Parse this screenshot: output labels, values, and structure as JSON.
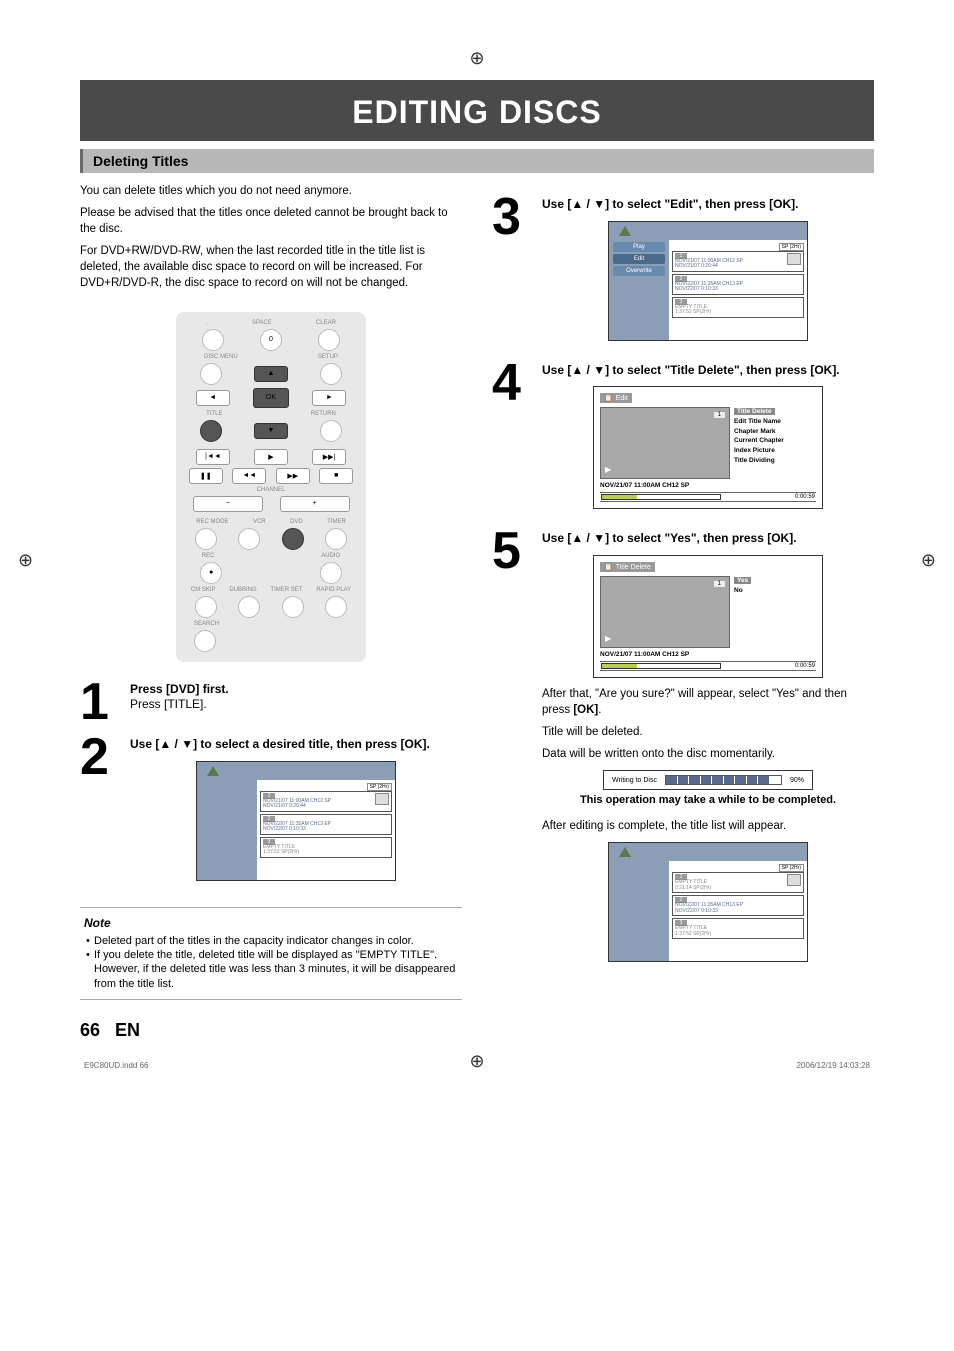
{
  "page_title": "EDITING DISCS",
  "section_header": "Deleting Titles",
  "intro1": "You can delete titles which you do not need anymore.",
  "intro2": "Please be advised that the titles once deleted cannot be brought back to the disc.",
  "intro3": "For DVD+RW/DVD-RW, when the last recorded title in the title list is deleted, the available disc space to record on will be increased. For DVD+R/DVD-R, the disc space to record on will not be changed.",
  "remote": {
    "labels": {
      "space": "SPACE",
      "clear": "CLEAR",
      "disc_menu": "DISC MENU",
      "setup": "SETUP",
      "ok": "OK",
      "title": "TITLE",
      "return": "RETURN",
      "channel": "CHANNEL",
      "rec_mode": "REC MODE",
      "vcr": "VCR",
      "dvd": "DVD",
      "timer": "TIMER",
      "rec": "REC",
      "audio": "AUDIO",
      "cm_skip": "CM SKIP",
      "dubbing": "DUBBING",
      "timer_set": "TIMER SET",
      "rapid": "RAPID PLAY",
      "search": "SEARCH"
    }
  },
  "step1": {
    "num": "1",
    "bold": "Press [DVD] first.",
    "rest": "Press [TITLE]."
  },
  "step2": {
    "num": "2",
    "text": "Use [▲ / ▼] to select a desired title, then press [OK]."
  },
  "step3": {
    "num": "3",
    "text": "Use [▲ / ▼] to select \"Edit\", then press [OK]."
  },
  "step4": {
    "num": "4",
    "text": "Use [▲ / ▼] to select \"Title Delete\", then press [OK]."
  },
  "step5": {
    "num": "5",
    "text": "Use [▲ / ▼] to select \"Yes\", then press [OK]."
  },
  "title_list": {
    "sp": "SP (2Hr)",
    "menu": {
      "play": "Play",
      "edit": "Edit",
      "overwrite": "Overwrite"
    },
    "items": [
      {
        "n": "1",
        "l1": "NOV/21/07 11:00AM CH12 SP",
        "l2": "NOV/21/07   0:20:44"
      },
      {
        "n": "2",
        "l1": "NOV/22/07 11:35AM CH13 EP",
        "l2": "NOV/22/07   0:10:33"
      },
      {
        "n": "3",
        "l1": "EMPTY TITLE",
        "l2": "1:37:52  SP(2Hr)",
        "empty": true
      }
    ]
  },
  "title_list_after": {
    "sp": "SP (2Hr)",
    "items": [
      {
        "n": "1",
        "l1": "EMPTY TITLE",
        "l2": "0:21:14  SP(2Hr)",
        "empty": true
      },
      {
        "n": "2",
        "l1": "NOV/22/07 11:35AM CH13 EP",
        "l2": "NOV/22/07   0:10:33"
      },
      {
        "n": "3",
        "l1": "EMPTY TITLE",
        "l2": "1:37:52  SP(2Hr)",
        "empty": true
      }
    ]
  },
  "edit_screen": {
    "title": "Edit",
    "preview_num": "1",
    "opts": [
      "Title Delete",
      "Edit Title Name",
      "Chapter Mark",
      "Current Chapter",
      "Index Picture",
      "Title Dividing"
    ],
    "footer": "NOV/21/07 11:00AM CH12 SP",
    "time": "0:00:59"
  },
  "delete_screen": {
    "title": "Title Delete",
    "preview_num": "1",
    "yes": "Yes",
    "no": "No",
    "footer": "NOV/21/07 11:00AM CH12 SP",
    "time": "0:00:59"
  },
  "after_text1": "After that, \"Are you sure?\" will appear, select \"Yes\" and then press [OK].",
  "after_text2": "Title will be deleted.",
  "after_text3": "Data will be written onto the disc momentarily.",
  "writing": {
    "label": "Writing to Disc",
    "pct": "90%"
  },
  "op_note": "This operation may take a while to be completed.",
  "after_edit": "After editing is complete, the title list will appear.",
  "note_title": "Note",
  "note1": "Deleted part of the titles in the capacity indicator changes in color.",
  "note2": "If you delete the title, deleted title will be displayed as \"EMPTY TITLE\". However, if the deleted title was less than 3 minutes, it will be disappeared from the title list.",
  "page_num": "66",
  "page_lang": "EN",
  "footer_left": "E9C80UD.indd   66",
  "footer_right": "2006/12/19   14:03:28"
}
